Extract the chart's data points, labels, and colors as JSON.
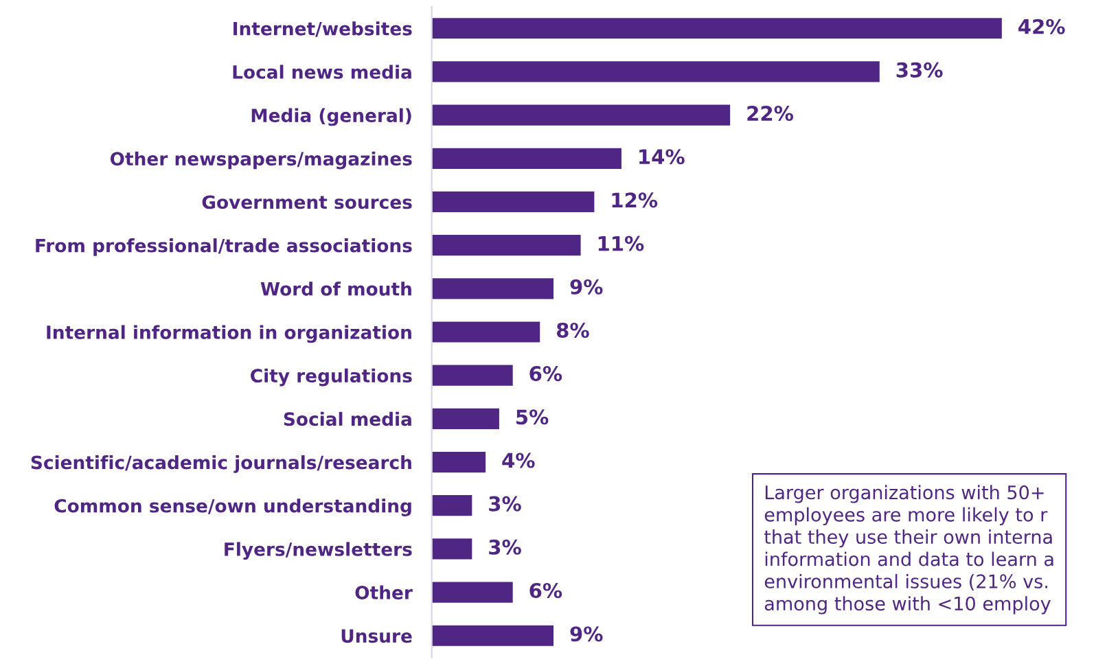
{
  "chart_data": {
    "type": "bar",
    "orientation": "horizontal",
    "categories": [
      "Internet/websites",
      "Local news media",
      "Media (general)",
      "Other newspapers/magazines",
      "Government sources",
      "From professional/trade associations",
      "Word of mouth",
      "Internal information in organization",
      "City regulations",
      "Social media",
      "Scientific/academic journals/research",
      "Common sense/own understanding",
      "Flyers/newsletters",
      "Other",
      "Unsure"
    ],
    "values": [
      42,
      33,
      22,
      14,
      12,
      11,
      9,
      8,
      6,
      5,
      4,
      3,
      3,
      6,
      9
    ],
    "value_labels": [
      "42%",
      "33%",
      "22%",
      "14%",
      "12%",
      "11%",
      "9%",
      "8%",
      "6%",
      "5%",
      "4%",
      "3%",
      "3%",
      "6%",
      "9%"
    ],
    "color": "#4f2683",
    "annotations": [
      "Larger organizations with 50+\nemployees are more likely to r\nthat they use their own interna\ninformation and data to learn a\nenvironmental issues (21% vs.\namong those with <10 employ"
    ],
    "grid": false,
    "legend": false
  }
}
